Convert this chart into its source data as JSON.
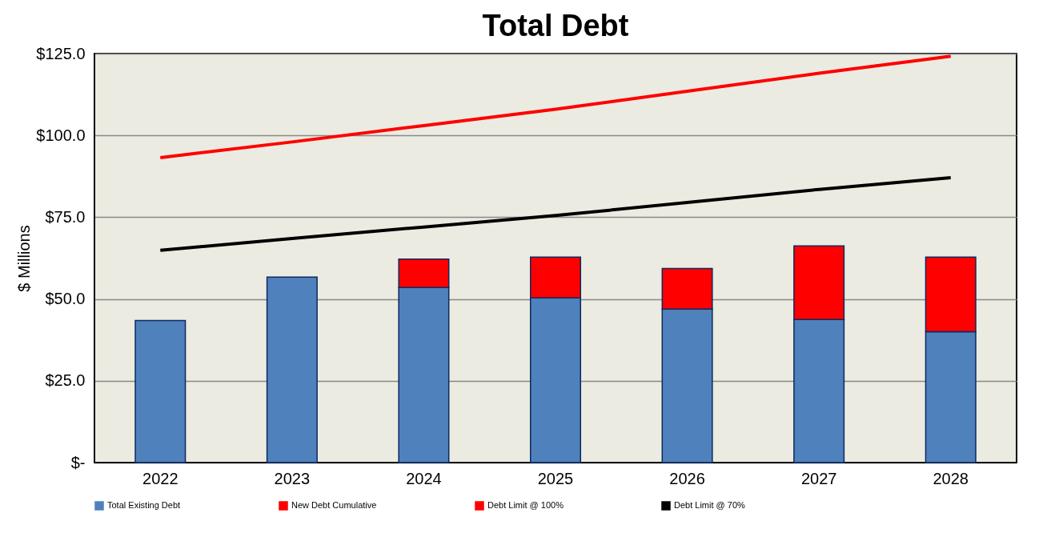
{
  "chart_data": {
    "type": "bar",
    "title": "Total Debt",
    "ylabel": "$ Millions",
    "categories": [
      "2022",
      "2023",
      "2024",
      "2025",
      "2026",
      "2027",
      "2028"
    ],
    "stacked": true,
    "series": [
      {
        "name": "Total Existing Debt",
        "color": "#4f81bd",
        "values": [
          43.4,
          56.7,
          53.5,
          50.3,
          46.9,
          43.7,
          40.0
        ]
      },
      {
        "name": "New Debt Cumulative",
        "color": "#ff0000",
        "values": [
          null,
          null,
          8.7,
          12.5,
          12.4,
          22.5,
          22.8
        ]
      },
      {
        "name": "Debt Limit @ 100%",
        "type": "line",
        "color": "#ff0000",
        "values": [
          93.2,
          98.0,
          103.0,
          108.0,
          113.5,
          119.0,
          124.2
        ]
      },
      {
        "name": "Debt Limit @ 70%",
        "type": "line",
        "color": "#000000",
        "values": [
          64.9,
          68.5,
          72.0,
          75.5,
          79.5,
          83.5,
          87.1
        ]
      }
    ],
    "ylim": [
      0,
      125
    ],
    "yticks": [
      {
        "value": 0,
        "label": "$-"
      },
      {
        "value": 25,
        "label": "$25.0"
      },
      {
        "value": 50,
        "label": "$50.0"
      },
      {
        "value": 75,
        "label": "$75.0"
      },
      {
        "value": 100,
        "label": "$100.0"
      },
      {
        "value": 125,
        "label": "$125.0"
      }
    ],
    "grid": "y",
    "legend": "bottom"
  }
}
